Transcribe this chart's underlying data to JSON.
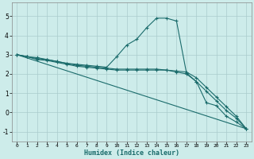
{
  "title": "",
  "xlabel": "Humidex (Indice chaleur)",
  "xlim": [
    -0.5,
    23.5
  ],
  "ylim": [
    -1.5,
    5.7
  ],
  "background_color": "#cdecea",
  "grid_color": "#b8d8d8",
  "line_color": "#1a6b6b",
  "xticks": [
    0,
    1,
    2,
    3,
    4,
    5,
    6,
    7,
    8,
    9,
    10,
    11,
    12,
    13,
    14,
    15,
    16,
    17,
    18,
    19,
    20,
    21,
    22,
    23
  ],
  "yticks": [
    -1,
    0,
    1,
    2,
    3,
    4,
    5
  ],
  "lines": [
    {
      "x": [
        0,
        1,
        2,
        3,
        4,
        5,
        6,
        7,
        8,
        9,
        10,
        11,
        12,
        13,
        14,
        15,
        16,
        17,
        18,
        19,
        20,
        21,
        22,
        23
      ],
      "y": [
        3.0,
        2.9,
        2.85,
        2.75,
        2.65,
        2.55,
        2.5,
        2.45,
        2.4,
        2.35,
        2.9,
        3.5,
        3.8,
        4.4,
        4.9,
        4.9,
        4.75,
        2.05,
        1.6,
        0.5,
        0.35,
        -0.2,
        -0.5,
        -0.85
      ],
      "marker": true
    },
    {
      "x": [
        0,
        1,
        2,
        3,
        4,
        5,
        6,
        7,
        8,
        9,
        10,
        11,
        12,
        13,
        14,
        15,
        16,
        17,
        18,
        19,
        20,
        21,
        22,
        23
      ],
      "y": [
        3.0,
        2.9,
        2.8,
        2.75,
        2.65,
        2.55,
        2.45,
        2.4,
        2.35,
        2.3,
        2.25,
        2.25,
        2.25,
        2.25,
        2.25,
        2.2,
        2.15,
        2.1,
        1.8,
        1.3,
        0.8,
        0.3,
        -0.2,
        -0.85
      ],
      "marker": true
    },
    {
      "x": [
        0,
        1,
        2,
        3,
        4,
        5,
        6,
        7,
        8,
        9,
        10,
        11,
        12,
        13,
        14,
        15,
        16,
        17,
        18,
        19,
        20,
        21,
        22,
        23
      ],
      "y": [
        3.0,
        2.9,
        2.75,
        2.7,
        2.6,
        2.5,
        2.4,
        2.35,
        2.3,
        2.25,
        2.2,
        2.2,
        2.2,
        2.2,
        2.2,
        2.2,
        2.1,
        2.0,
        1.6,
        1.1,
        0.6,
        0.1,
        -0.3,
        -0.85
      ],
      "marker": true
    },
    {
      "x": [
        0,
        23
      ],
      "y": [
        3.0,
        -0.85
      ],
      "marker": false
    }
  ]
}
